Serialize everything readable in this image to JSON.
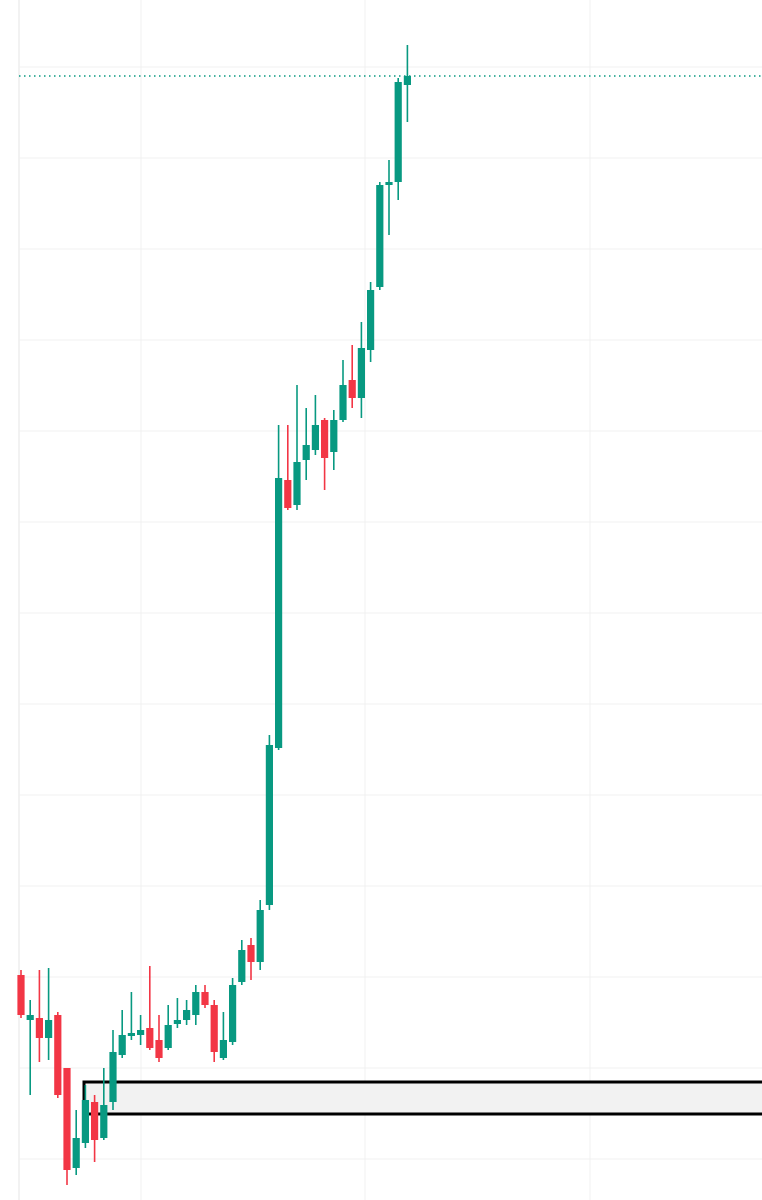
{
  "chart_data": {
    "type": "candlestick",
    "categories": [
      null,
      null,
      null,
      null,
      null,
      null,
      null,
      null,
      null,
      null,
      null,
      null,
      null,
      null,
      null,
      null,
      null,
      null,
      null,
      null,
      null,
      null,
      null,
      null,
      null,
      null,
      null,
      null,
      null,
      null,
      null,
      null,
      null,
      null,
      null,
      null,
      null,
      null,
      null,
      null,
      null,
      null,
      null
    ],
    "open": [
      225,
      180,
      182,
      162,
      185,
      132,
      32,
      57,
      98,
      62,
      98,
      145,
      164,
      165,
      172,
      160,
      152,
      176,
      180,
      185,
      208,
      195,
      142,
      158,
      218,
      255,
      238,
      295,
      452,
      720,
      695,
      740,
      750,
      780,
      748,
      780,
      820,
      802,
      850,
      913,
      1015,
      1018,
      1115
    ],
    "high": [
      230,
      200,
      230,
      232,
      188,
      132,
      90,
      115,
      105,
      132,
      170,
      190,
      208,
      185,
      234,
      185,
      195,
      202,
      200,
      215,
      215,
      200,
      188,
      222,
      260,
      262,
      300,
      465,
      775,
      775,
      815,
      792,
      805,
      782,
      790,
      840,
      855,
      878,
      918,
      1018,
      1040,
      1122,
      1155
    ],
    "low": [
      182,
      105,
      138,
      140,
      102,
      15,
      25,
      52,
      38,
      60,
      90,
      142,
      160,
      155,
      150,
      138,
      150,
      172,
      175,
      175,
      192,
      138,
      140,
      155,
      215,
      220,
      230,
      290,
      450,
      690,
      690,
      720,
      745,
      710,
      730,
      778,
      792,
      782,
      838,
      910,
      965,
      1000,
      1078
    ],
    "close": [
      185,
      185,
      162,
      180,
      105,
      30,
      62,
      100,
      60,
      95,
      148,
      165,
      167,
      170,
      152,
      142,
      175,
      180,
      190,
      208,
      195,
      148,
      160,
      215,
      250,
      238,
      290,
      455,
      722,
      692,
      738,
      755,
      775,
      742,
      780,
      815,
      802,
      852,
      910,
      1015,
      1018,
      1118,
      1124
    ],
    "up_color": "#089981",
    "down_color": "#f23645",
    "ylim": [
      0,
      1200
    ],
    "yticks": [
      41,
      132,
      223,
      314,
      405,
      496,
      587,
      678,
      769,
      860,
      951,
      1042,
      1133
    ],
    "grid": true,
    "price_line": 1124,
    "zone": {
      "high": 118,
      "low": 86
    }
  }
}
